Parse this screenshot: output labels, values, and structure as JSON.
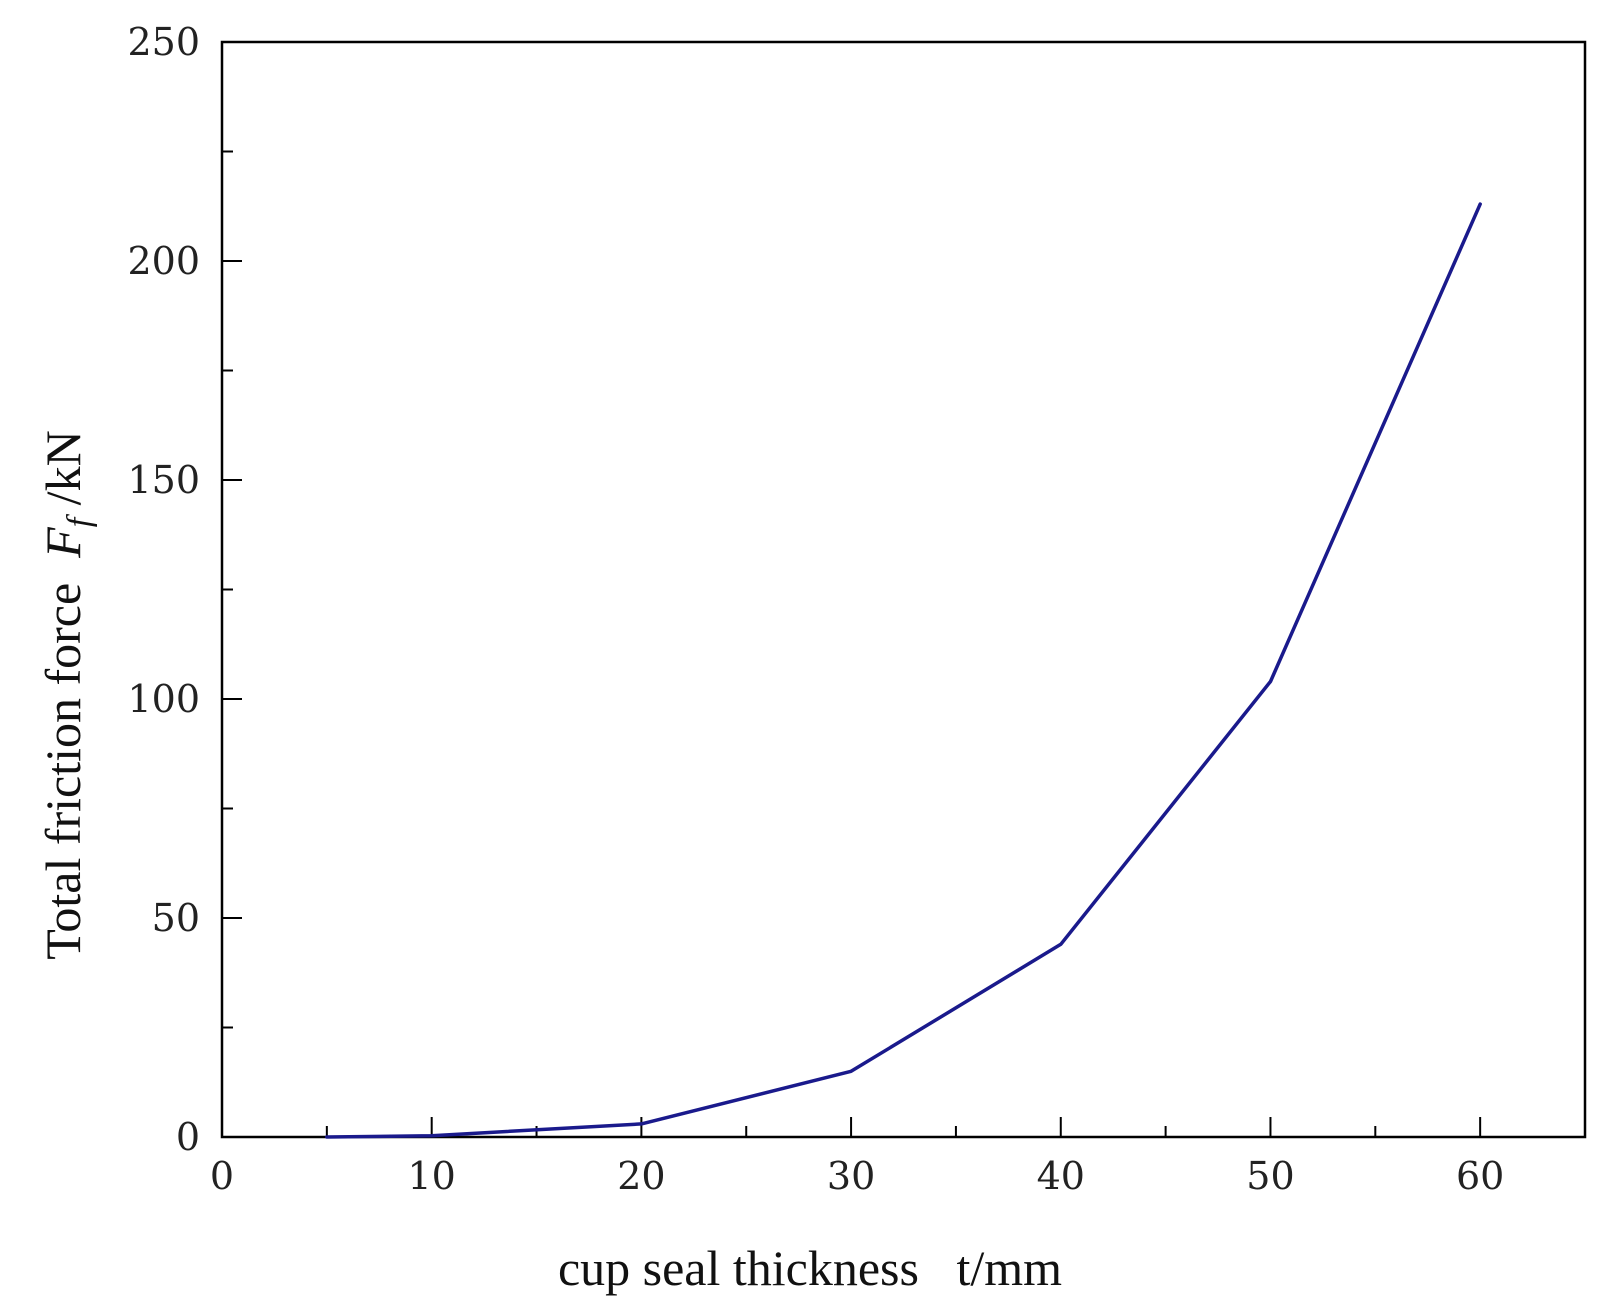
{
  "chart_data": {
    "type": "line",
    "title": "",
    "xlabel": "cup seal thickness   t/mm",
    "ylabel_prefix": "Total friction force  ",
    "ylabel_symbol": "F",
    "ylabel_subscript": "f",
    "ylabel_unit": " /kN",
    "xlim": [
      0,
      65
    ],
    "ylim": [
      0,
      250
    ],
    "xticks": [
      0,
      10,
      20,
      30,
      40,
      50,
      60
    ],
    "yticks": [
      0,
      50,
      100,
      150,
      200,
      250
    ],
    "grid": false,
    "legend": "none",
    "series": [
      {
        "color": "#1a1a8c",
        "x": [
          5,
          10,
          20,
          30,
          40,
          50,
          60
        ],
        "y": [
          0,
          0.3,
          3,
          15,
          44,
          104,
          213
        ]
      }
    ]
  }
}
